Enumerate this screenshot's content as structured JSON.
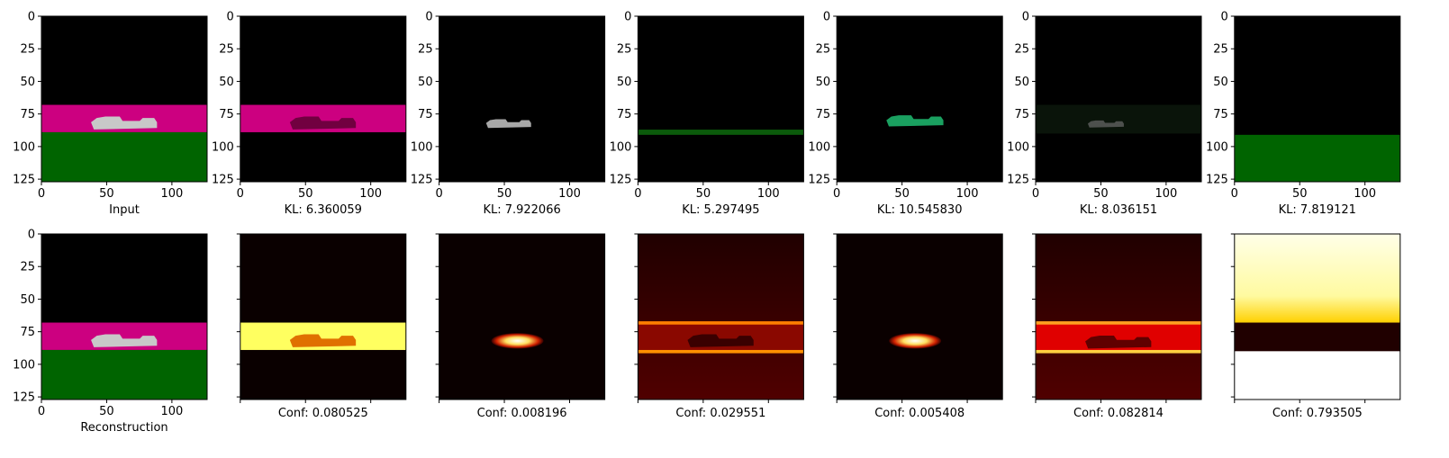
{
  "chart_data": {
    "type": "image_grid",
    "rows": 2,
    "cols": 7,
    "image_extent": [
      0,
      127
    ],
    "xticks": [
      0,
      50,
      100
    ],
    "yticks": [
      0,
      25,
      50,
      75,
      100,
      125
    ],
    "colors": {
      "sky": "#000000",
      "band": "#cc0080",
      "ground": "#006400",
      "heat_dark": "#000000",
      "heat_mid": "#b01000",
      "heat_hot": "#ffff60",
      "heat_white": "#ffffff"
    },
    "panels": [
      {
        "row": 0,
        "col": 0,
        "name": "input",
        "caption": "Input",
        "kind": "scene",
        "show_xtick_labels": true,
        "show_ytick_labels": true
      },
      {
        "row": 0,
        "col": 1,
        "name": "slot1-recon",
        "caption": "KL: 6.360059",
        "kind": "slot-band",
        "show_xtick_labels": true,
        "show_ytick_labels": true
      },
      {
        "row": 0,
        "col": 2,
        "name": "slot2-recon",
        "caption": "KL: 7.922066",
        "kind": "slot-car-gray",
        "show_xtick_labels": true,
        "show_ytick_labels": true
      },
      {
        "row": 0,
        "col": 3,
        "name": "slot3-recon",
        "caption": "KL: 5.297495",
        "kind": "slot-line",
        "show_xtick_labels": true,
        "show_ytick_labels": true
      },
      {
        "row": 0,
        "col": 4,
        "name": "slot4-recon",
        "caption": "KL: 10.545830",
        "kind": "slot-car-green",
        "show_xtick_labels": true,
        "show_ytick_labels": true
      },
      {
        "row": 0,
        "col": 5,
        "name": "slot5-recon",
        "caption": "KL: 8.036151",
        "kind": "slot-faint",
        "show_xtick_labels": true,
        "show_ytick_labels": true
      },
      {
        "row": 0,
        "col": 6,
        "name": "slot6-recon",
        "caption": "KL: 7.819121",
        "kind": "slot-ground",
        "show_xtick_labels": true,
        "show_ytick_labels": true
      },
      {
        "row": 1,
        "col": 0,
        "name": "reconstruction",
        "caption": "Reconstruction",
        "kind": "scene",
        "show_xtick_labels": true,
        "show_ytick_labels": true
      },
      {
        "row": 1,
        "col": 1,
        "name": "slot1-mask",
        "caption": "Conf: 0.080525",
        "kind": "mask-band-yellow",
        "show_xtick_labels": false,
        "show_ytick_labels": false
      },
      {
        "row": 1,
        "col": 2,
        "name": "slot2-mask",
        "caption": "Conf: 0.008196",
        "kind": "mask-car",
        "show_xtick_labels": false,
        "show_ytick_labels": false
      },
      {
        "row": 1,
        "col": 3,
        "name": "slot3-mask",
        "caption": "Conf: 0.029551",
        "kind": "mask-band-dark",
        "show_xtick_labels": false,
        "show_ytick_labels": false
      },
      {
        "row": 1,
        "col": 4,
        "name": "slot4-mask",
        "caption": "Conf: 0.005408",
        "kind": "mask-car",
        "show_xtick_labels": false,
        "show_ytick_labels": false
      },
      {
        "row": 1,
        "col": 5,
        "name": "slot5-mask",
        "caption": "Conf: 0.082814",
        "kind": "mask-band-red",
        "show_xtick_labels": false,
        "show_ytick_labels": false
      },
      {
        "row": 1,
        "col": 6,
        "name": "slot6-mask",
        "caption": "Conf: 0.793505",
        "kind": "mask-sky-ground",
        "show_xtick_labels": false,
        "show_ytick_labels": false
      }
    ]
  }
}
